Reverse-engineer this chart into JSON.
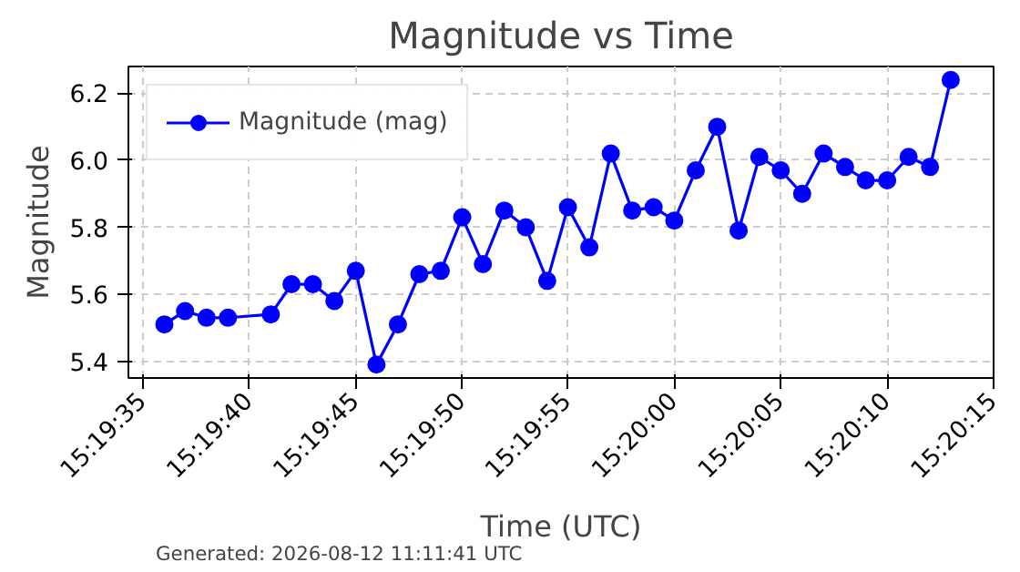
{
  "chart_data": {
    "type": "line",
    "title": "Magnitude vs Time",
    "xlabel": "Time (UTC)",
    "ylabel": "Magnitude",
    "annotations": [
      "Generated: 2026-08-12 11:11:41 UTC"
    ],
    "x": [
      15.32667,
      15.32694,
      15.32722,
      15.3275,
      15.32806,
      15.32833,
      15.32861,
      15.32889,
      15.32917,
      15.32944,
      15.32972,
      15.33,
      15.33028,
      15.33056,
      15.33083,
      15.33111,
      15.33139,
      15.33167,
      15.33194,
      15.33222,
      15.3325,
      15.33278,
      15.33306,
      15.33333,
      15.33361,
      15.33389,
      15.33417,
      15.33444,
      15.33472,
      15.335,
      15.33528,
      15.33556,
      15.33583,
      15.33611,
      15.33639,
      15.33667,
      15.33694
    ],
    "series": [
      {
        "name": "Magnitude (mag)",
        "color": "#0000ff",
        "values": [
          5.51,
          5.55,
          5.53,
          5.53,
          5.54,
          5.63,
          5.63,
          5.58,
          5.67,
          5.39,
          5.51,
          5.66,
          5.67,
          5.83,
          5.69,
          5.85,
          5.8,
          5.64,
          5.86,
          5.74,
          6.02,
          5.85,
          5.86,
          5.82,
          5.97,
          6.1,
          5.79,
          6.01,
          5.97,
          5.9,
          6.02,
          5.98,
          5.94,
          5.94,
          6.01,
          5.98,
          6.24
        ]
      }
    ],
    "xlim": [
      15.3262,
      15.3375
    ],
    "xticks": [
      {
        "value": 15.32639,
        "label": "15:19:35"
      },
      {
        "value": 15.32778,
        "label": "15:19:40"
      },
      {
        "value": 15.32917,
        "label": "15:19:45"
      },
      {
        "value": 15.33056,
        "label": "15:19:50"
      },
      {
        "value": 15.33194,
        "label": "15:19:55"
      },
      {
        "value": 15.33333,
        "label": "15:20:00"
      },
      {
        "value": 15.33472,
        "label": "15:20:05"
      },
      {
        "value": 15.33611,
        "label": "15:20:10"
      },
      {
        "value": 15.3375,
        "label": "15:20:15"
      }
    ],
    "ylim": [
      5.35,
      6.28
    ],
    "yticks": [
      {
        "value": 5.4,
        "label": "5.4"
      },
      {
        "value": 5.6,
        "label": "5.6"
      },
      {
        "value": 5.8,
        "label": "5.8"
      },
      {
        "value": 6.0,
        "label": "6.0"
      },
      {
        "value": 6.2,
        "label": "6.2"
      }
    ],
    "grid": true,
    "legend": "top left",
    "marker": "circle",
    "line_style": "solid"
  }
}
